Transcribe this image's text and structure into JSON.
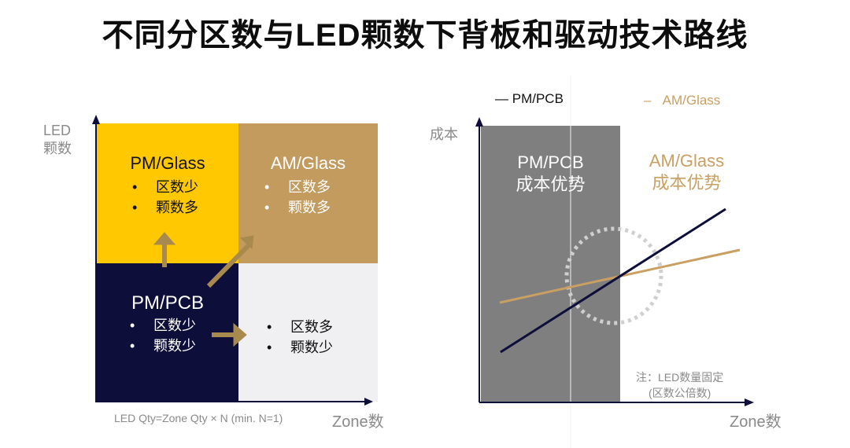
{
  "title": "不同分区数与LED颗数下背板和驱动技术路线",
  "left_diagram": {
    "y_axis_label": [
      "LED",
      "颗数"
    ],
    "x_axis_label": "Zone数",
    "formula": "LED Qty=Zone Qty × N (min. N=1)",
    "quadrants": {
      "top_left": {
        "title": "PM/Glass",
        "bullets": [
          "区数少",
          "颗数多"
        ],
        "color": "#FFC800"
      },
      "top_right": {
        "title": "AM/Glass",
        "bullets": [
          "区数多",
          "颗数多"
        ],
        "color": "#C39B5E"
      },
      "bottom_left": {
        "title": "PM/PCB",
        "bullets": [
          "区数少",
          "颗数少"
        ],
        "color": "#0E0E3A"
      },
      "bottom_right": {
        "bullets": [
          "区数多",
          "颗数少"
        ],
        "color": "#F0F0F2"
      }
    },
    "arrow_color": "#A88A4E"
  },
  "right_diagram": {
    "legend": [
      {
        "label": "PM/PCB",
        "color": "#0E0E3A"
      },
      {
        "label": "AM/Glass",
        "color": "#C9A062"
      }
    ],
    "y_axis_label": "成本",
    "x_axis_label": "Zone数",
    "region_pm": {
      "line1": "PM/PCB",
      "line2": "成本优势",
      "color": "#7F7F7F"
    },
    "region_am": {
      "line1": "AM/Glass",
      "line2": "成本优势"
    },
    "note": [
      "注：LED数量固定",
      "(区数公倍数)"
    ]
  }
}
